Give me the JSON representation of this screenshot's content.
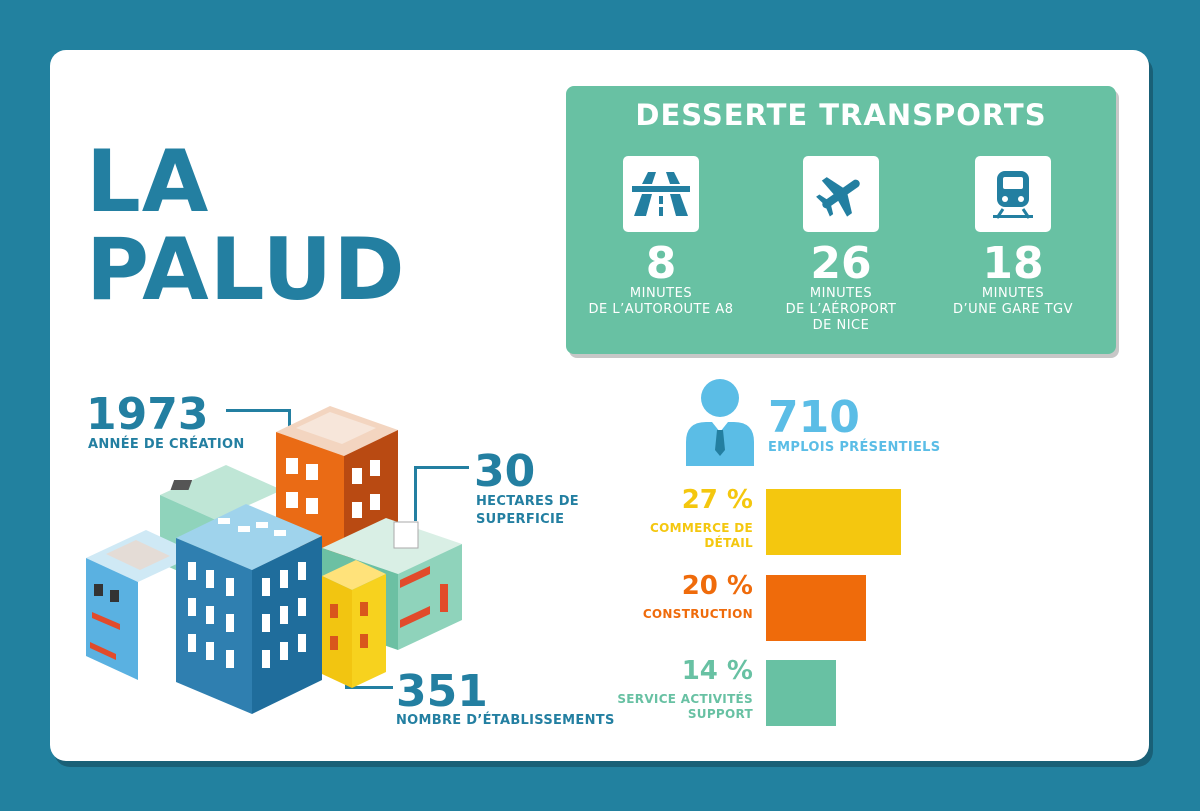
{
  "title": {
    "line1": "LA",
    "line2": "PALUD"
  },
  "transport": {
    "title": "DESSERTE TRANSPORTS",
    "items": [
      {
        "icon": "highway-icon",
        "value": "8",
        "line1": "MINUTES",
        "line2": "DE L’AUTOROUTE A8",
        "line3": ""
      },
      {
        "icon": "airplane-icon",
        "value": "26",
        "line1": "MINUTES",
        "line2": "DE L’AÉROPORT",
        "line3": "DE NICE"
      },
      {
        "icon": "train-icon",
        "value": "18",
        "line1": "MINUTES",
        "line2": "D’UNE GARE TGV",
        "line3": ""
      }
    ]
  },
  "stats": {
    "founded": {
      "value": "1973",
      "label": "ANNÉE DE CRÉATION"
    },
    "area": {
      "value": "30",
      "label_line1": "HECTARES DE",
      "label_line2": "SUPERFICIE"
    },
    "establishments": {
      "value": "351",
      "label": "NOMBRE D’ÉTABLISSEMENTS"
    }
  },
  "employment": {
    "value": "710",
    "label": "EMPLOIS PRÉSENTIELS"
  },
  "chart_data": {
    "type": "bar",
    "orientation": "horizontal",
    "categories": [
      "COMMERCE DE DÉTAIL",
      "CONSTRUCTION",
      "SERVICE ACTIVITÉS SUPPORT"
    ],
    "values": [
      27,
      20,
      14
    ],
    "value_labels": [
      "27 %",
      "20 %",
      "14 %"
    ],
    "label_lines": [
      [
        "COMMERCE DE",
        "DÉTAIL"
      ],
      [
        "CONSTRUCTION"
      ],
      [
        "SERVICE ACTIVITÉS",
        "SUPPORT"
      ]
    ],
    "colors": [
      "#f4c70f",
      "#ef6b0b",
      "#68c1a3"
    ],
    "xlim": [
      0,
      27
    ],
    "grid": false
  },
  "colors": {
    "background": "#22819f",
    "primary": "#237fa1",
    "accent_light_blue": "#5bbde6",
    "panel_green": "#68c1a3"
  }
}
